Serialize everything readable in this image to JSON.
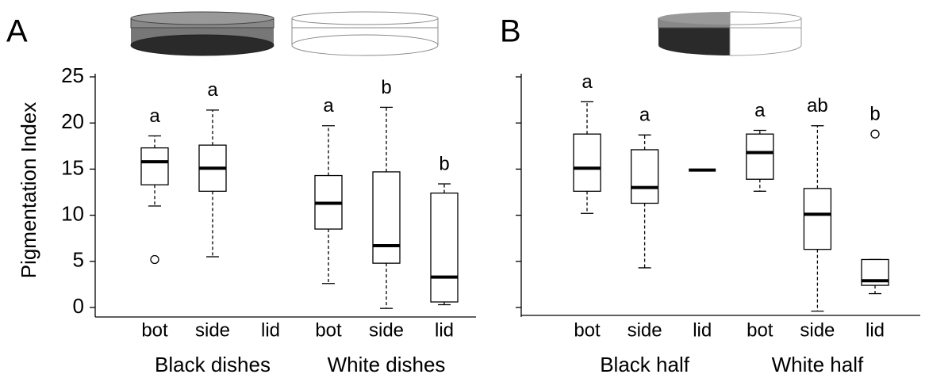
{
  "chart_data": [
    {
      "type": "box",
      "panel_label": "A",
      "ylabel": "Pigmentation Index",
      "categories": [
        "bot",
        "side",
        "lid",
        "bot",
        "side",
        "lid"
      ],
      "groups": [
        "Black dishes",
        "White dishes"
      ],
      "ylim": [
        0,
        25
      ],
      "yticks": [
        0,
        5,
        10,
        15,
        20,
        25
      ],
      "boxes": [
        {
          "min": 11.0,
          "q1": 13.3,
          "median": 15.8,
          "q3": 17.3,
          "max": 18.6,
          "outliers": [
            5.2
          ],
          "letter": "a"
        },
        {
          "min": 5.5,
          "q1": 12.6,
          "median": 15.1,
          "q3": 17.6,
          "max": 21.4,
          "outliers": [],
          "letter": "a"
        },
        null,
        {
          "min": 2.6,
          "q1": 8.5,
          "median": 11.3,
          "q3": 14.3,
          "max": 19.7,
          "outliers": [],
          "letter": "a"
        },
        {
          "min": -0.1,
          "q1": 4.8,
          "median": 6.7,
          "q3": 14.7,
          "max": 21.7,
          "outliers": [],
          "letter": "b"
        },
        {
          "min": 0.3,
          "q1": 0.6,
          "median": 3.3,
          "q3": 12.4,
          "max": 13.4,
          "outliers": [],
          "letter": "b"
        }
      ]
    },
    {
      "type": "box",
      "panel_label": "B",
      "categories": [
        "bot",
        "side",
        "lid",
        "bot",
        "side",
        "lid"
      ],
      "groups": [
        "Black half",
        "White half"
      ],
      "ylim": [
        0,
        25
      ],
      "yticks": [
        0,
        5,
        10,
        15,
        20,
        25
      ],
      "boxes": [
        {
          "min": 10.2,
          "q1": 12.6,
          "median": 15.1,
          "q3": 18.8,
          "max": 22.3,
          "outliers": [],
          "letter": "a"
        },
        {
          "min": 4.3,
          "q1": 11.3,
          "median": 13.0,
          "q3": 17.1,
          "max": 18.7,
          "outliers": [],
          "letter": "a"
        },
        {
          "min": 14.9,
          "q1": 14.9,
          "median": 14.9,
          "q3": 14.9,
          "max": 14.9,
          "outliers": []
        },
        {
          "min": 12.6,
          "q1": 13.9,
          "median": 16.8,
          "q3": 18.8,
          "max": 19.2,
          "outliers": [],
          "letter": "a"
        },
        {
          "min": -0.4,
          "q1": 6.3,
          "median": 10.1,
          "q3": 12.9,
          "max": 19.7,
          "outliers": [],
          "letter": "ab"
        },
        {
          "min": 1.5,
          "q1": 2.4,
          "median": 2.9,
          "q3": 5.2,
          "max": 5.2,
          "outliers": [
            18.8
          ],
          "letter": "b"
        }
      ]
    }
  ]
}
